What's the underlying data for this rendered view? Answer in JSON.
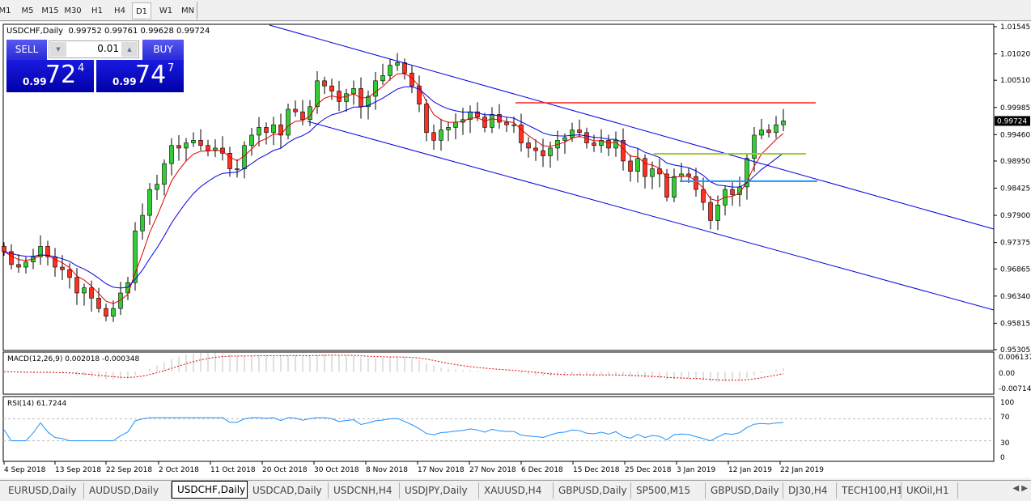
{
  "timeframes": [
    "M1",
    "M5",
    "M15",
    "M30",
    "H1",
    "H4",
    "D1",
    "W1",
    "MN"
  ],
  "active_timeframe": "D1",
  "chart": {
    "title": "USDCHF,Daily  0.99752 0.99761 0.99628 0.99724",
    "current_price_label": "0.99724",
    "price_axis": [
      "1.01545",
      "1.01020",
      "1.00510",
      "0.99985",
      "0.99460",
      "0.98950",
      "0.98425",
      "0.97900",
      "0.97375",
      "0.96865",
      "0.96340",
      "0.95815",
      "0.95305"
    ],
    "date_axis": [
      "4 Sep 2018",
      "13 Sep 2018",
      "22 Sep 2018",
      "2 Oct 2018",
      "11 Oct 2018",
      "20 Oct 2018",
      "30 Oct 2018",
      "8 Nov 2018",
      "17 Nov 2018",
      "27 Nov 2018",
      "6 Dec 2018",
      "15 Dec 2018",
      "25 Dec 2018",
      "3 Jan 2019",
      "12 Jan 2019",
      "22 Jan 2019"
    ],
    "colors": {
      "bull": "#32cd32",
      "bear": "#ff3020",
      "ma_fast": "#e00000",
      "ma_slow": "#0000e0",
      "channel": "#0000e0",
      "resistance": "#ff2020",
      "mid_level": "#9acd32",
      "support": "#1e90ff",
      "rsi": "#1e90ff",
      "macd_signal": "#e00000"
    },
    "levels": {
      "resistance": 1.00075,
      "mid_level": 0.9909,
      "support": 0.9856
    }
  },
  "trade_panel": {
    "sell_label": "SELL",
    "buy_label": "BUY",
    "lot": "0.01",
    "sell": {
      "prefix": "0.99",
      "big": "72",
      "sup": "4"
    },
    "buy": {
      "prefix": "0.99",
      "big": "74",
      "sup": "7"
    }
  },
  "macd": {
    "label": "MACD(12,26,9) 0.002018 -0.000348",
    "axis": [
      "0.006137",
      "0.00",
      "-0.007142"
    ]
  },
  "rsi": {
    "label": "RSI(14) 61.7244",
    "axis": [
      "100",
      "70",
      "30",
      "0"
    ]
  },
  "chart_data": {
    "type": "candlestick",
    "ylim": [
      0.95305,
      1.01545
    ],
    "closes": [
      0.972,
      0.9695,
      0.969,
      0.97,
      0.971,
      0.973,
      0.971,
      0.969,
      0.9685,
      0.967,
      0.964,
      0.965,
      0.963,
      0.961,
      0.9595,
      0.961,
      0.964,
      0.966,
      0.976,
      0.979,
      0.984,
      0.985,
      0.989,
      0.9925,
      0.992,
      0.993,
      0.9935,
      0.9925,
      0.9915,
      0.992,
      0.991,
      0.988,
      0.988,
      0.9925,
      0.9945,
      0.996,
      0.995,
      0.9965,
      0.9945,
      0.9995,
      0.999,
      0.9975,
      1.0,
      1.005,
      1.004,
      1.003,
      1.001,
      1.0025,
      1.0035,
      1.0,
      1.002,
      1.005,
      1.006,
      1.008,
      1.0085,
      1.0065,
      1.004,
      1.0005,
      0.995,
      0.9935,
      0.9955,
      0.996,
      0.997,
      0.9975,
      0.999,
      0.998,
      0.996,
      0.9985,
      0.997,
      0.9965,
      0.9965,
      0.993,
      0.992,
      0.9915,
      0.9905,
      0.992,
      0.9935,
      0.994,
      0.9955,
      0.995,
      0.993,
      0.9925,
      0.9935,
      0.992,
      0.9935,
      0.9895,
      0.9875,
      0.99,
      0.9865,
      0.988,
      0.987,
      0.9825,
      0.9865,
      0.987,
      0.9865,
      0.984,
      0.9815,
      0.978,
      0.981,
      0.984,
      0.983,
      0.9845,
      0.99,
      0.9945,
      0.9955,
      0.995,
      0.9965,
      0.99724
    ]
  },
  "symbol_tabs": [
    "EURUSD,Daily",
    "AUDUSD,Daily",
    "USDCHF,Daily",
    "USDCAD,Daily",
    "USDCNH,H4",
    "USDJPY,Daily",
    "XAUUSD,H4",
    "GBPUSD,Daily",
    "SP500,M15",
    "GBPUSD,Daily",
    "DJ30,H4",
    "TECH100,H1",
    "UKOil,H1"
  ],
  "active_symbol_tab": "USDCHF,Daily"
}
